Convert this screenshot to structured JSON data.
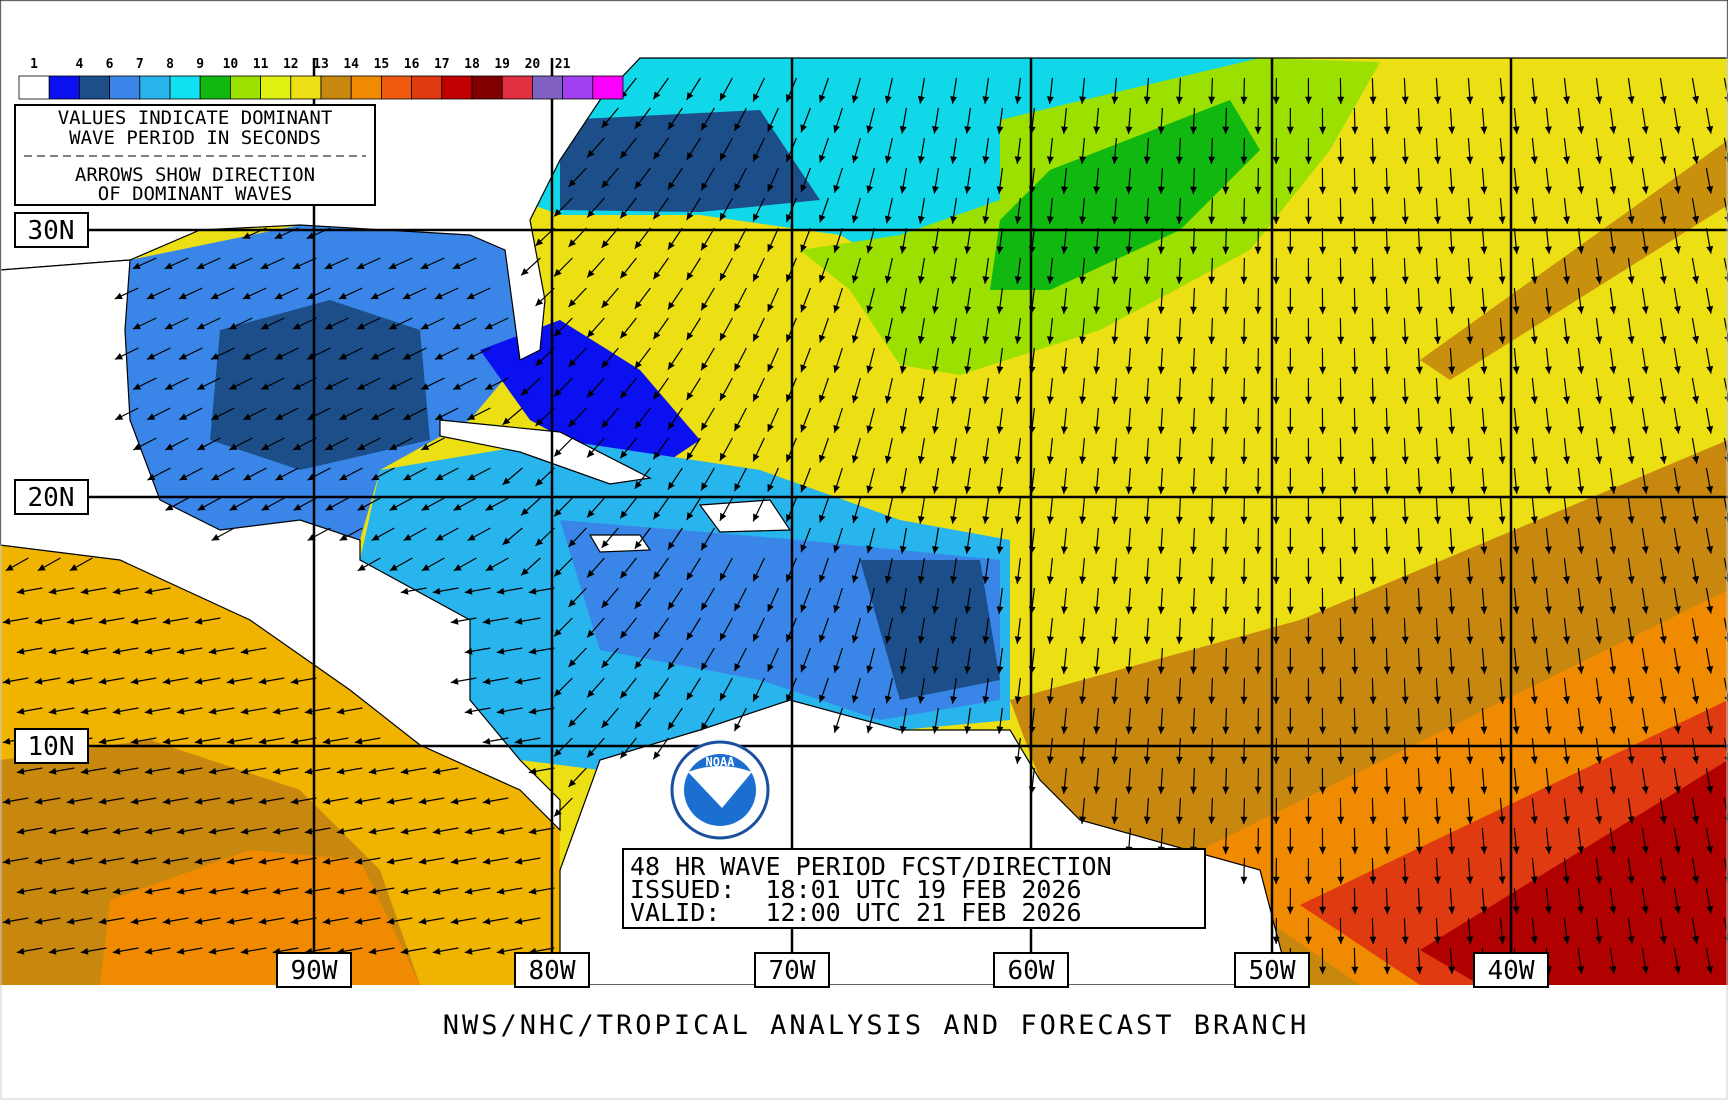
{
  "legend": {
    "labels": [
      "1",
      "4",
      "6",
      "7",
      "8",
      "9",
      "10",
      "11",
      "12",
      "13",
      "14",
      "15",
      "16",
      "17",
      "18",
      "19",
      "20",
      "21"
    ],
    "note_lines": [
      "VALUES INDICATE DOMINANT",
      "WAVE PERIOD IN SECONDS",
      "ARROWS SHOW DIRECTION",
      "OF DOMINANT WAVES"
    ]
  },
  "grid": {
    "latitudes": [
      "30N",
      "20N",
      "10N"
    ],
    "longitudes": [
      "90W",
      "80W",
      "70W",
      "60W",
      "50W",
      "40W"
    ]
  },
  "forecast_box": {
    "title": "48 HR WAVE PERIOD FCST/DIRECTION",
    "issued": "ISSUED:  18:01 UTC 19 FEB 2026",
    "valid": "VALID:   12:00 UTC 21 FEB 2026"
  },
  "logo": "NOAA",
  "footer": "NWS/NHC/TROPICAL ANALYSIS AND FORECAST BRANCH"
}
